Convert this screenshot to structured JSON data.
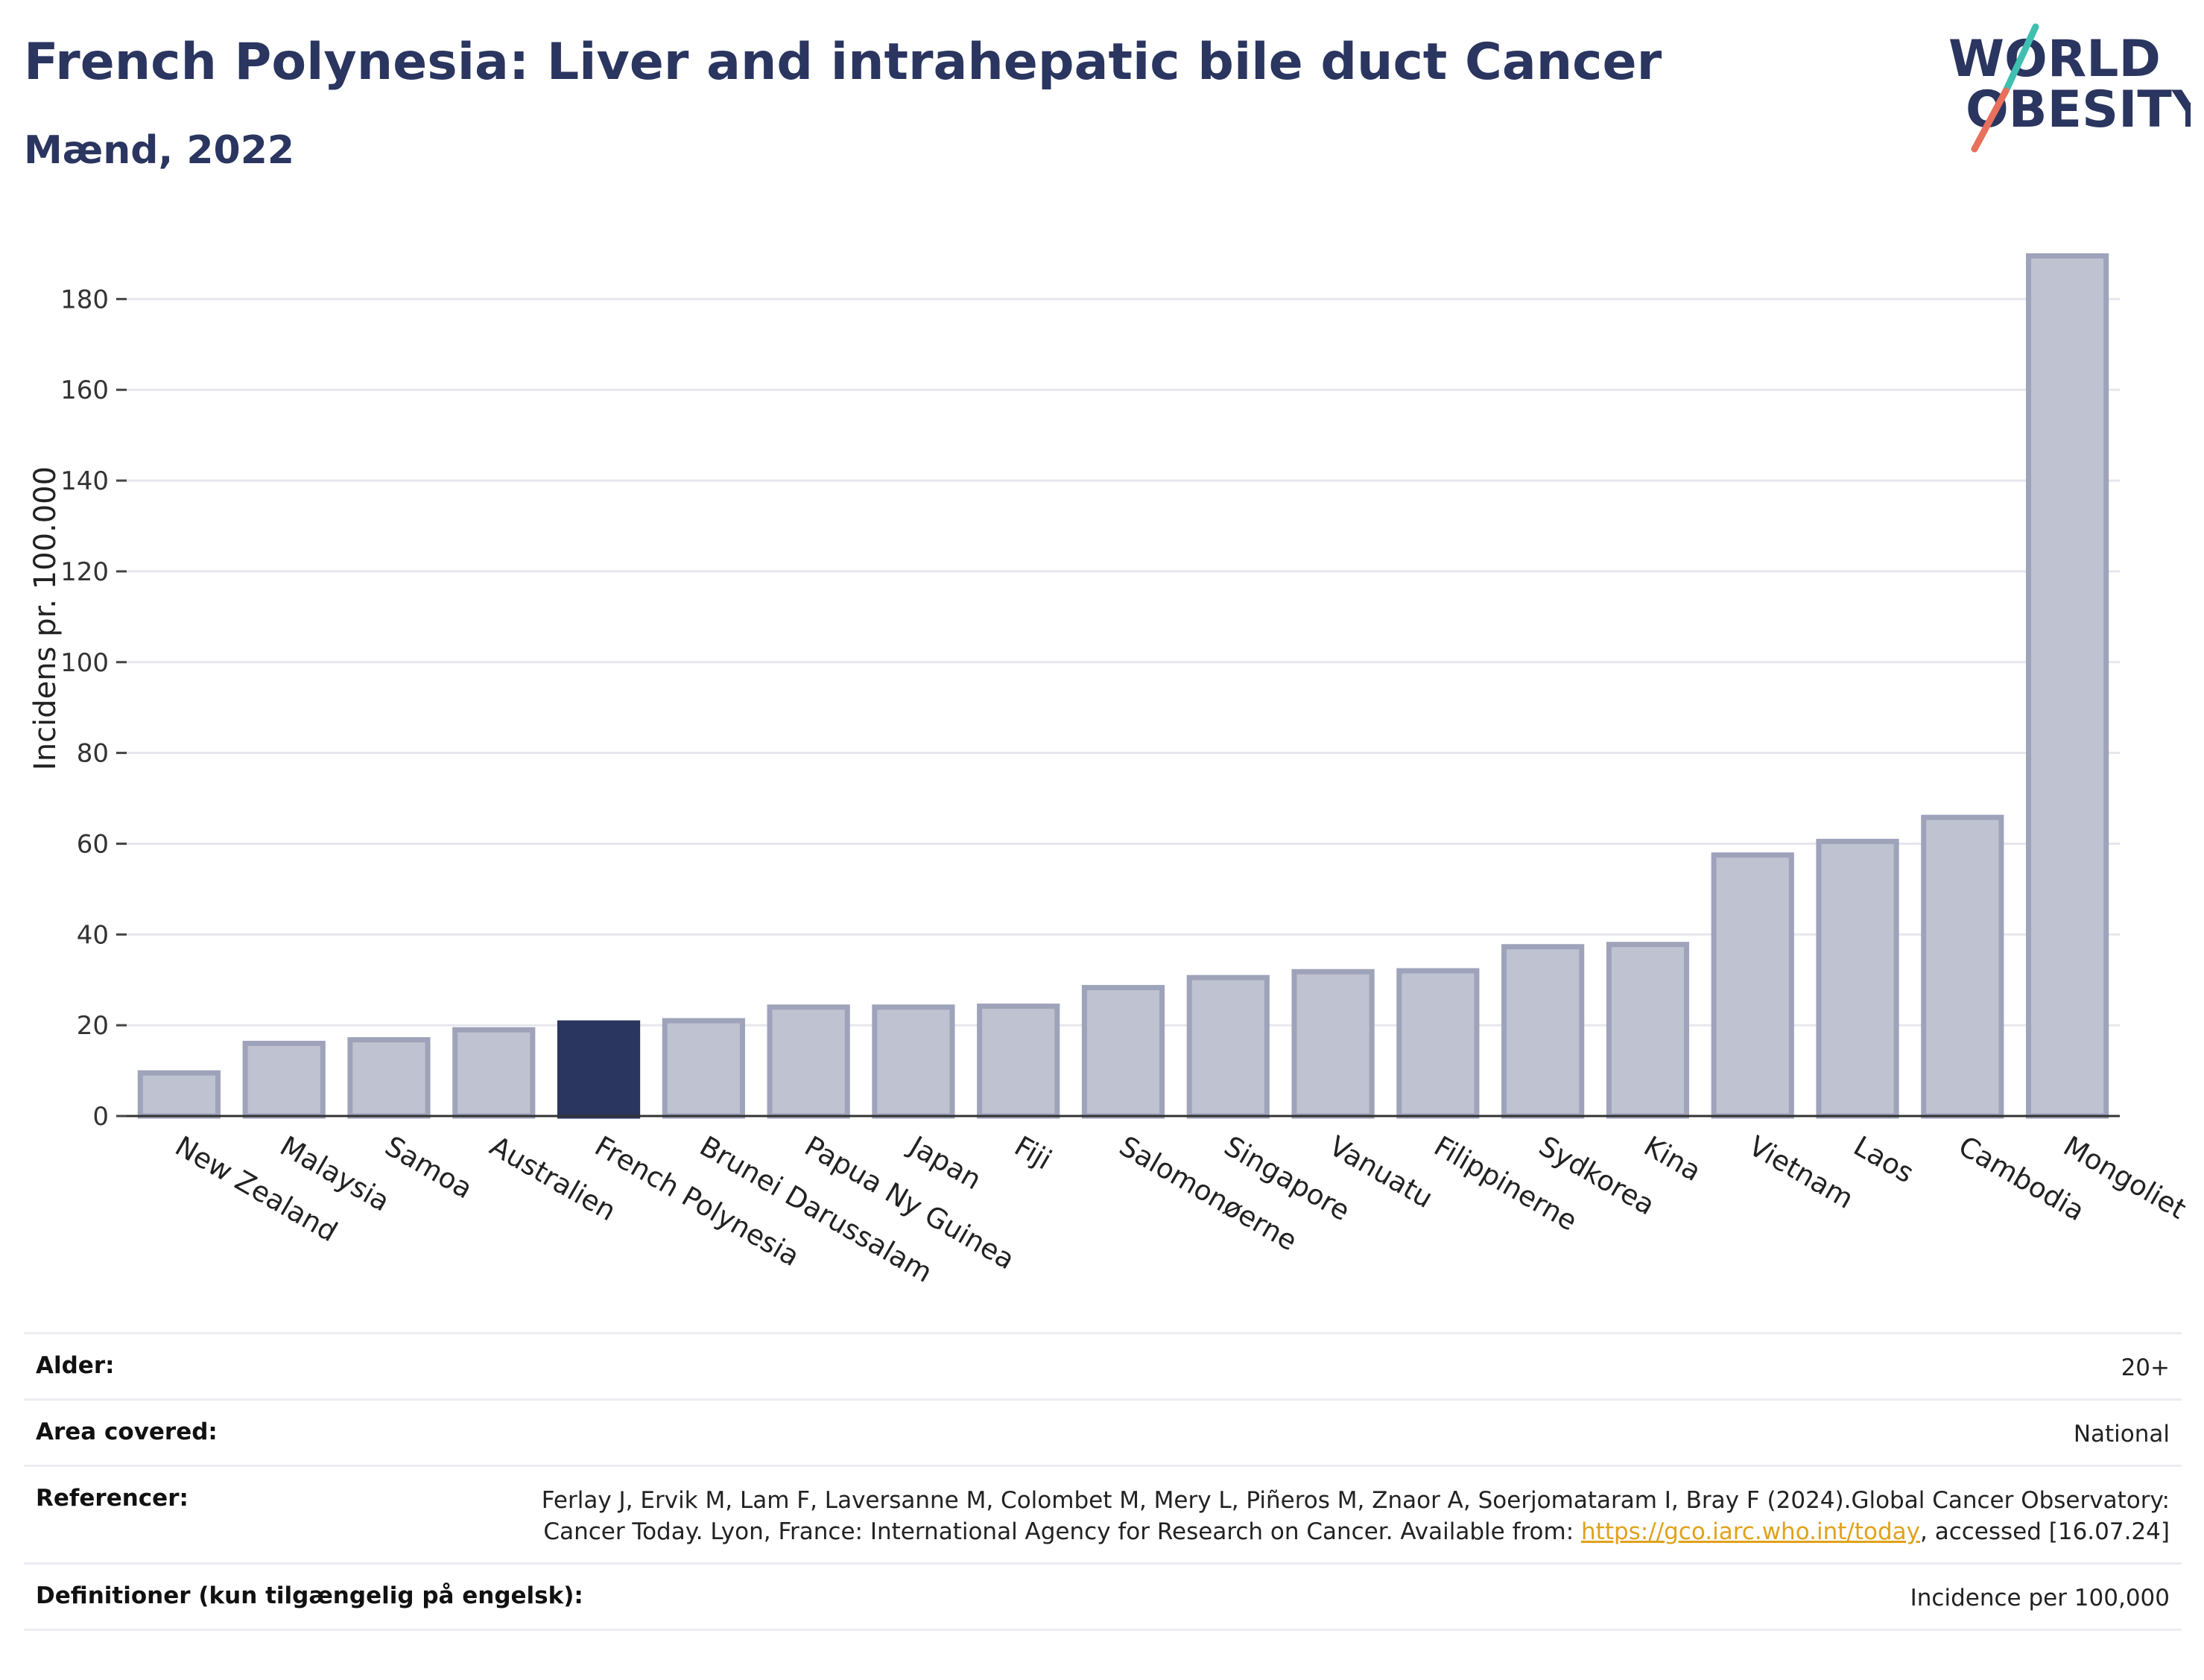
{
  "header": {
    "title": "French Polynesia: Liver and intrahepatic bile duct Cancer",
    "subtitle": "Mænd, 2022",
    "logo_line1": "WORLD",
    "logo_line2": "OBESITY"
  },
  "colors": {
    "highlight": "#2a3560",
    "bar_fill": "#bfc2d1",
    "bar_stroke": "#9ea3ba",
    "grid": "#e6e6ee",
    "title": "#2a3560",
    "link": "#e0a21a",
    "logo_slash_top": "#3fbfb0",
    "logo_slash_bottom": "#e8705c"
  },
  "chart_data": {
    "type": "bar",
    "title": "French Polynesia: Liver and intrahepatic bile duct Cancer",
    "subtitle": "Mænd, 2022",
    "ylabel": "Incidens pr. 100.000",
    "xlabel": "",
    "ylim": [
      0,
      195
    ],
    "yticks": [
      0,
      20,
      40,
      60,
      80,
      100,
      120,
      140,
      160,
      180
    ],
    "grid": true,
    "highlight": "French Polynesia",
    "categories": [
      "New Zealand",
      "Malaysia",
      "Samoa",
      "Australien",
      "French Polynesia",
      "Brunei Darussalam",
      "Papua Ny Guinea",
      "Japan",
      "Fiji",
      "Salomonøerne",
      "Singapore",
      "Vanuatu",
      "Filippinerne",
      "Sydkorea",
      "Kina",
      "Vietnam",
      "Laos",
      "Cambodia",
      "Mongoliet"
    ],
    "values": [
      9.5,
      16,
      16.8,
      19,
      20.5,
      21,
      24,
      24,
      24.2,
      28.3,
      30.5,
      31.8,
      32,
      37.3,
      37.8,
      57.5,
      60.5,
      65.8,
      189.5
    ]
  },
  "info": {
    "rows": [
      {
        "key": "Alder:",
        "value": "20+"
      },
      {
        "key": "Area covered:",
        "value": "National"
      },
      {
        "key": "Referencer:",
        "value_before": "Ferlay J, Ervik M, Lam F, Laversanne M, Colombet M, Mery L, Piñeros M, Znaor A, Soerjomataram I, Bray F (2024).Global Cancer Observatory: Cancer Today. Lyon, France: International Agency for Research on Cancer. Available from: ",
        "link": "https://gco.iarc.who.int/today",
        "value_after": ", accessed [16.07.24]"
      },
      {
        "key": "Definitioner (kun tilgængelig på engelsk):",
        "value": "Incidence per 100,000"
      }
    ]
  }
}
